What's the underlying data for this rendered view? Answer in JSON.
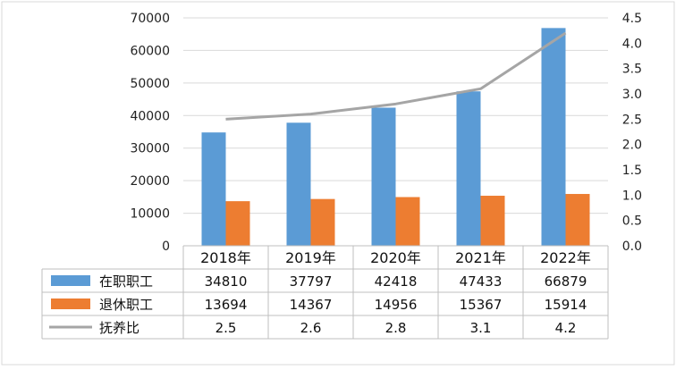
{
  "chart_data": {
    "type": "bar",
    "categories": [
      "2018年",
      "2019年",
      "2020年",
      "2021年",
      "2022年"
    ],
    "series": [
      {
        "name": "在职职工",
        "type": "bar",
        "axis": "left",
        "color": "#5b9bd5",
        "values": [
          34810,
          37797,
          42418,
          47433,
          66879
        ],
        "labels": [
          "34810",
          "37797",
          "42418",
          "47433",
          "66879"
        ]
      },
      {
        "name": "退休职工",
        "type": "bar",
        "axis": "left",
        "color": "#ed7d31",
        "values": [
          13694,
          14367,
          14956,
          15367,
          15914
        ],
        "labels": [
          "13694",
          "14367",
          "14956",
          "15367",
          "15914"
        ]
      },
      {
        "name": "抚养比",
        "type": "line",
        "axis": "right",
        "color": "#a5a5a5",
        "values": [
          2.5,
          2.6,
          2.8,
          3.1,
          4.2
        ],
        "labels": [
          "2.5",
          "2.6",
          "2.8",
          "3.1",
          "4.2"
        ]
      }
    ],
    "ylim_left": [
      0,
      70000
    ],
    "ylim_right": [
      0,
      4.5
    ],
    "yticks_left": [
      "0",
      "10000",
      "20000",
      "30000",
      "40000",
      "50000",
      "60000",
      "70000"
    ],
    "yticks_right": [
      "0.0",
      "0.5",
      "1.0",
      "1.5",
      "2.0",
      "2.5",
      "3.0",
      "3.5",
      "4.0",
      "4.5"
    ],
    "grid": true,
    "legend": "data-table-left",
    "data_table": true
  }
}
